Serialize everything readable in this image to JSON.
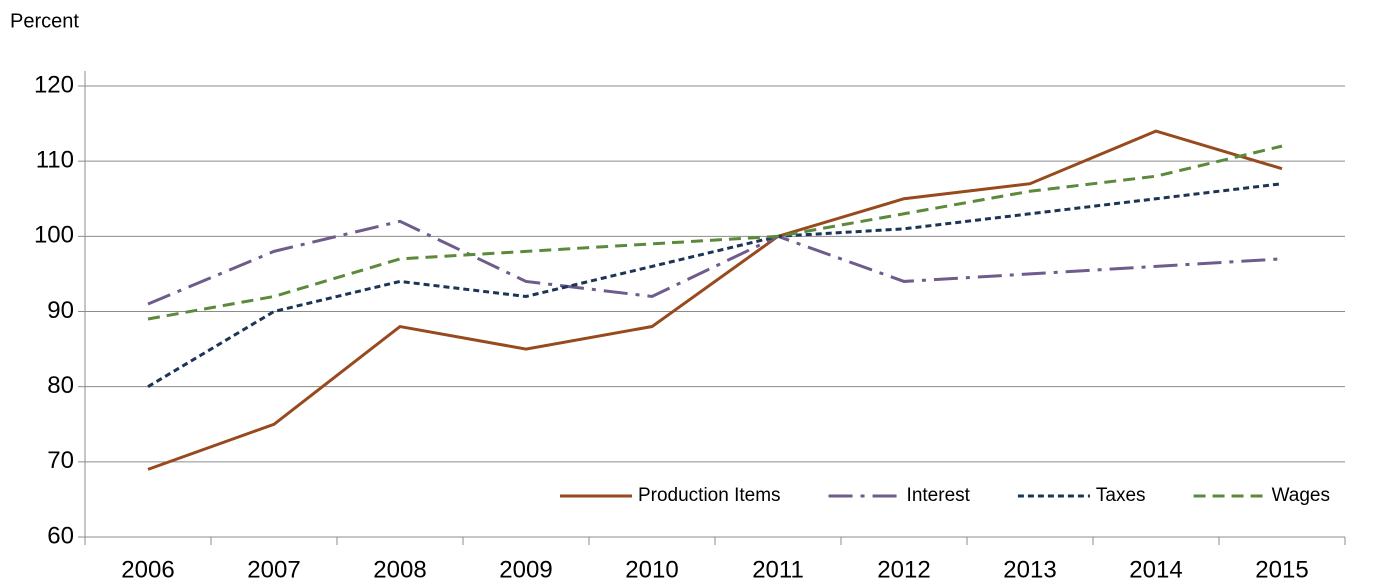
{
  "chart_data": {
    "type": "line",
    "y_axis_label": "Percent",
    "categories": [
      "2006",
      "2007",
      "2008",
      "2009",
      "2010",
      "2011",
      "2012",
      "2013",
      "2014",
      "2015"
    ],
    "series": [
      {
        "name": "Production Items",
        "color": "#974a1e",
        "dash": "solid",
        "values": [
          69,
          75,
          88,
          85,
          88,
          100,
          105,
          107,
          114,
          109
        ]
      },
      {
        "name": "Interest",
        "color": "#6e5c8c",
        "dash": "dashdot",
        "values": [
          91,
          98,
          102,
          94,
          92,
          100,
          94,
          95,
          96,
          97
        ]
      },
      {
        "name": "Taxes",
        "color": "#1c3554",
        "dash": "dot",
        "values": [
          80,
          90,
          94,
          92,
          96,
          100,
          101,
          103,
          105,
          107
        ]
      },
      {
        "name": "Wages",
        "color": "#5b8a3a",
        "dash": "dash",
        "values": [
          89,
          92,
          97,
          98,
          99,
          100,
          103,
          106,
          108,
          112
        ]
      }
    ],
    "ylim": [
      60,
      120
    ],
    "yticks": [
      60,
      70,
      80,
      90,
      100,
      110,
      120
    ],
    "grid": true,
    "legend": "lower right"
  }
}
